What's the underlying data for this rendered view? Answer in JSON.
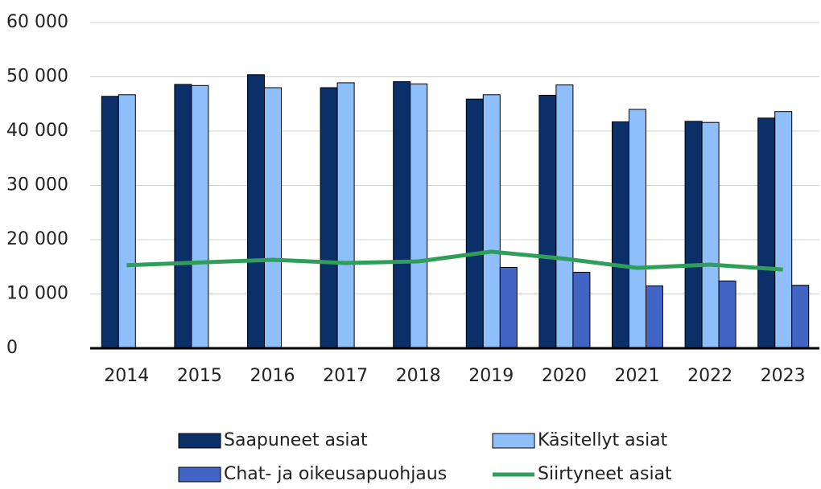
{
  "chart_data": {
    "type": "bar",
    "categories": [
      "2014",
      "2015",
      "2016",
      "2017",
      "2018",
      "2019",
      "2020",
      "2021",
      "2022",
      "2023"
    ],
    "series": [
      {
        "name": "Saapuneet asiat",
        "type": "bar",
        "color": "#0b2f69",
        "values": [
          46400,
          48600,
          50400,
          48000,
          49100,
          45900,
          46600,
          41700,
          41800,
          42400
        ]
      },
      {
        "name": "Käsitellyt asiat",
        "type": "bar",
        "color": "#8fbffa",
        "values": [
          46700,
          48400,
          48000,
          48900,
          48700,
          46700,
          48500,
          44000,
          41600,
          43600
        ]
      },
      {
        "name": "Chat- ja oikeusapuohjaus",
        "type": "bar",
        "color": "#4264c4",
        "values": [
          null,
          null,
          null,
          null,
          null,
          14900,
          14000,
          11500,
          12400,
          11600
        ]
      },
      {
        "name": "Siirtyneet asiat",
        "type": "line",
        "color": "#2e9e5a",
        "values": [
          15300,
          15800,
          16300,
          15700,
          16000,
          17800,
          16500,
          14800,
          15400,
          14500
        ]
      }
    ],
    "ylim": [
      0,
      60000
    ],
    "yticks": [
      0,
      {
        "value": 10000,
        "label": "10 000"
      },
      {
        "value": 20000,
        "label": "20 000"
      },
      {
        "value": 30000,
        "label": "30 000"
      },
      {
        "value": 40000,
        "label": "40 000"
      },
      {
        "value": 50000,
        "label": "50 000"
      },
      {
        "value": 60000,
        "label": "60 000"
      }
    ],
    "grid": true
  }
}
